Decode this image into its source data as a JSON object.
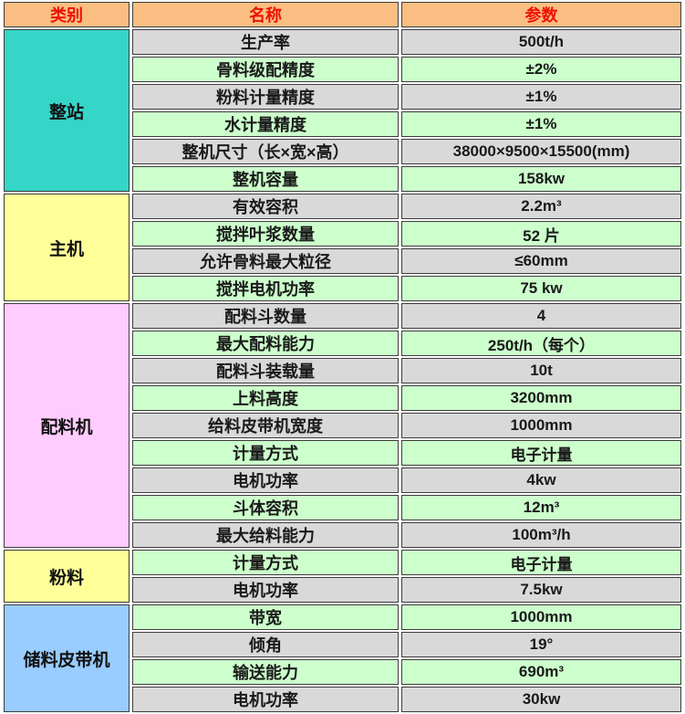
{
  "header": {
    "category": "类别",
    "name": "名称",
    "param": "参数"
  },
  "colors": {
    "header_bg": "#FABE82",
    "header_text": "#EE1100",
    "row_odd_bg": "#D9D9D9",
    "row_even_bg": "#CCFFCC",
    "border": "#3C3C3C",
    "category_bg": {
      "cyan": "#35D5C8",
      "yellow": "#FFFF99",
      "pink": "#FFCCFF",
      "blue": "#99CCFF"
    }
  },
  "sections": [
    {
      "category": "整站",
      "color": "cyan",
      "rows": [
        {
          "name": "生产率",
          "param": "500t/h"
        },
        {
          "name": "骨料级配精度",
          "param": "±2%"
        },
        {
          "name": "粉料计量精度",
          "param": "±1%"
        },
        {
          "name": "水计量精度",
          "param": "±1%"
        },
        {
          "name": "整机尺寸（长×宽×高）",
          "param": "38000×9500×15500(mm)"
        },
        {
          "name": "整机容量",
          "param": "158kw"
        }
      ]
    },
    {
      "category": "主机",
      "color": "yellow",
      "rows": [
        {
          "name": "有效容积",
          "param": "2.2m³"
        },
        {
          "name": "搅拌叶浆数量",
          "param": "52 片"
        },
        {
          "name": "允许骨料最大粒径",
          "param": "≤60mm"
        },
        {
          "name": "搅拌电机功率",
          "param": "75 kw"
        }
      ]
    },
    {
      "category": "配料机",
      "color": "pink",
      "rows": [
        {
          "name": "配料斗数量",
          "param": "4"
        },
        {
          "name": "最大配料能力",
          "param": "250t/h（每个）"
        },
        {
          "name": "配料斗装载量",
          "param": "10t"
        },
        {
          "name": "上料高度",
          "param": "3200mm"
        },
        {
          "name": "给料皮带机宽度",
          "param": "1000mm"
        },
        {
          "name": "计量方式",
          "param": "电子计量"
        },
        {
          "name": "电机功率",
          "param": "4kw"
        },
        {
          "name": "斗体容积",
          "param": "12m³"
        },
        {
          "name": "最大给料能力",
          "param": "100m³/h"
        }
      ]
    },
    {
      "category": "粉料",
      "color": "yellow",
      "rows": [
        {
          "name": "计量方式",
          "param": "电子计量"
        },
        {
          "name": "电机功率",
          "param": "7.5kw"
        }
      ]
    },
    {
      "category": "储料皮带机",
      "color": "blue",
      "rows": [
        {
          "name": "带宽",
          "param": "1000mm"
        },
        {
          "name": "倾角",
          "param": "19°"
        },
        {
          "name": "输送能力",
          "param": "690m³"
        },
        {
          "name": "电机功率",
          "param": "30kw"
        }
      ]
    }
  ]
}
